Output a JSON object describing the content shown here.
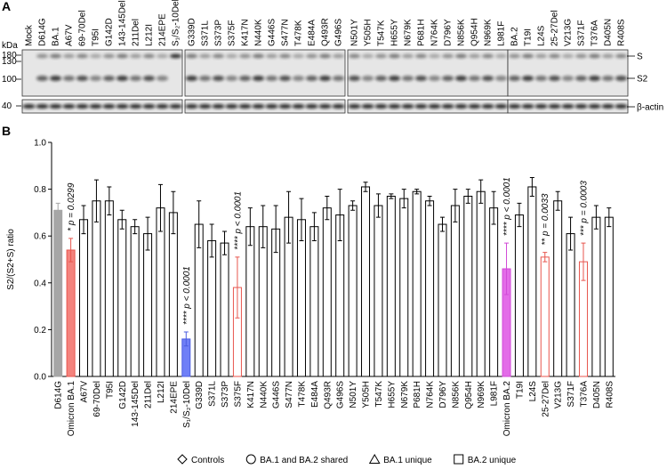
{
  "panel_a": {
    "panel_label": "A",
    "kda_label": "kDa",
    "mw_markers": [
      180,
      130,
      100,
      40
    ],
    "band_labels": [
      "S",
      "S2",
      "β-actin"
    ],
    "lane_groups": [
      [
        "Mock",
        "D614G",
        "BA.1",
        "A67V",
        "69-70Del",
        "T95I",
        "G142D",
        "143-145Del",
        "211Del",
        "L212I",
        "214EPE",
        "S₁/S₂-10Del"
      ],
      [
        "G339D",
        "S371L",
        "S373P",
        "S375F",
        "K417N",
        "N440K",
        "G446S",
        "S477N",
        "T478K",
        "E484A",
        "Q493R",
        "G496S"
      ],
      [
        "N501Y",
        "Y505H",
        "T547K",
        "H655Y",
        "N679K",
        "P681H",
        "N764K",
        "D796Y",
        "N856K",
        "Q954H",
        "N969K",
        "L981F"
      ],
      [
        "BA.2",
        "T19I",
        "L24S",
        "25-27Del",
        "V213G",
        "S371F",
        "T376A",
        "D405N",
        "R408S"
      ]
    ]
  },
  "chart_data": {
    "type": "bar",
    "panel_label": "B",
    "y_label": "S2/(S2+S) ratio",
    "categories": [
      "D614G",
      "Omicron BA.1",
      "A67V",
      "69-70Del",
      "T95I",
      "G142D",
      "143-145Del",
      "211Del",
      "L212I",
      "214EPE",
      "S₁/S₂-10Del",
      "G339D",
      "S371L",
      "S373P",
      "S375F",
      "K417N",
      "N440K",
      "G446S",
      "S477N",
      "T478K",
      "E484A",
      "Q493R",
      "G496S",
      "N501Y",
      "Y505H",
      "T547K",
      "H655Y",
      "N679K",
      "P681H",
      "N764K",
      "D796Y",
      "N856K",
      "Q954H",
      "N969K",
      "L981F",
      "Omicron BA.2",
      "T19I",
      "L24S",
      "25-27Del",
      "V213G",
      "S371F",
      "T376A",
      "D405N",
      "R408S"
    ],
    "values": [
      0.71,
      0.54,
      0.67,
      0.75,
      0.75,
      0.67,
      0.64,
      0.61,
      0.72,
      0.7,
      0.16,
      0.65,
      0.58,
      0.57,
      0.38,
      0.64,
      0.64,
      0.63,
      0.68,
      0.67,
      0.64,
      0.72,
      0.69,
      0.73,
      0.81,
      0.73,
      0.77,
      0.76,
      0.79,
      0.75,
      0.65,
      0.73,
      0.77,
      0.79,
      0.72,
      0.46,
      0.69,
      0.81,
      0.51,
      0.75,
      0.61,
      0.49,
      0.68,
      0.68
    ],
    "errors": [
      0.03,
      0.05,
      0.06,
      0.09,
      0.06,
      0.04,
      0.03,
      0.07,
      0.1,
      0.09,
      0.03,
      0.1,
      0.07,
      0.05,
      0.13,
      0.08,
      0.09,
      0.1,
      0.11,
      0.09,
      0.06,
      0.05,
      0.11,
      0.02,
      0.02,
      0.05,
      0.01,
      0.04,
      0.01,
      0.02,
      0.03,
      0.07,
      0.03,
      0.05,
      0.07,
      0.11,
      0.05,
      0.04,
      0.02,
      0.04,
      0.07,
      0.08,
      0.05,
      0.04
    ],
    "color": "#ffffff",
    "edge_color": "#000000",
    "bar_styles": [
      {
        "category": "D614G",
        "fill": "#a6a6a6",
        "edge": "#a6a6a6"
      },
      {
        "category": "Omicron BA.1",
        "fill": "#f4837d",
        "edge": "#e8564e"
      },
      {
        "category": "S₁/S₂-10Del",
        "fill": "#6f7ff7",
        "edge": "#4b5de0"
      },
      {
        "category": "S375F",
        "fill": "#ffffff",
        "edge": "#e8564e"
      },
      {
        "category": "Omicron BA.2",
        "fill": "#e36ce8",
        "edge": "#d24ad8"
      },
      {
        "category": "25-27Del",
        "fill": "#ffffff",
        "edge": "#e8564e"
      },
      {
        "category": "T376A",
        "fill": "#ffffff",
        "edge": "#e8564e"
      }
    ],
    "annotations": [
      {
        "category": "Omicron BA.1",
        "text": "* p = 0.0299"
      },
      {
        "category": "S₁/S₂-10Del",
        "text": "**** p < 0.0001"
      },
      {
        "category": "S375F",
        "text": "**** p < 0.0001"
      },
      {
        "category": "Omicron BA.2",
        "text": "**** p < 0.0001"
      },
      {
        "category": "25-27Del",
        "text": "** p = 0.0033"
      },
      {
        "category": "T376A",
        "text": "*** p = 0.0003"
      }
    ],
    "ylim": [
      0,
      1.0
    ],
    "yticks": [
      {
        "value": 0,
        "label": "0.0"
      },
      0.2,
      0.4,
      0.6,
      0.8,
      {
        "value": 1.0,
        "label": "1.0"
      }
    ],
    "legend": [
      {
        "label": "Controls",
        "marker": "diamond"
      },
      {
        "label": "BA.1 and BA.2 shared",
        "marker": "circle"
      },
      {
        "label": "BA.1 unique",
        "marker": "triangle"
      },
      {
        "label": "BA.2 unique",
        "marker": "square"
      }
    ]
  }
}
